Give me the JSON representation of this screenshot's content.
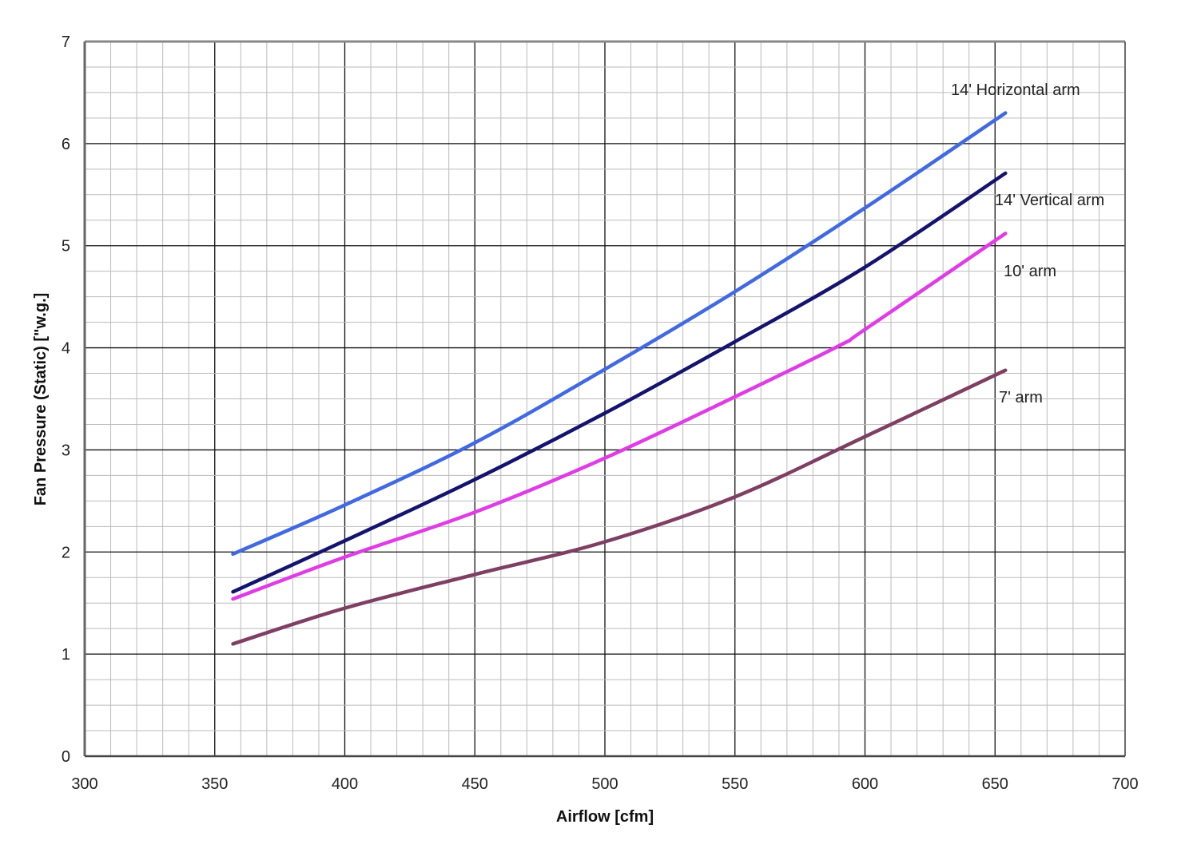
{
  "chart_data": {
    "type": "line",
    "title": "",
    "xlabel": "Airflow  [cfm]",
    "ylabel": "Fan Pressure (Static)  [\"w.g.]",
    "xlim": [
      300,
      700
    ],
    "ylim": [
      0,
      7
    ],
    "xticks": [
      300,
      350,
      400,
      450,
      500,
      550,
      600,
      650,
      700
    ],
    "yticks": [
      0,
      1,
      2,
      3,
      4,
      5,
      6,
      7
    ],
    "grid": true,
    "legend": "inline labels at right end of lines",
    "series": [
      {
        "name": "14' Horizontal arm",
        "color": "#4169e1",
        "x": [
          357,
          400,
          450,
          500,
          550,
          600,
          654
        ],
        "y": [
          1.98,
          2.46,
          3.07,
          3.79,
          4.55,
          5.37,
          6.3
        ]
      },
      {
        "name": "14' Vertical arm",
        "color": "#14146e",
        "x": [
          357,
          400,
          450,
          500,
          550,
          600,
          654
        ],
        "y": [
          1.61,
          2.11,
          2.71,
          3.36,
          4.06,
          4.79,
          5.71
        ]
      },
      {
        "name": "10' arm",
        "color": "#e03ce6",
        "x": [
          357,
          400,
          450,
          500,
          550,
          590,
          600,
          654
        ],
        "y": [
          1.54,
          1.95,
          2.39,
          2.92,
          3.52,
          4.02,
          4.18,
          5.12
        ]
      },
      {
        "name": "7' arm",
        "color": "#7e3f63",
        "x": [
          357,
          400,
          450,
          500,
          550,
          600,
          654
        ],
        "y": [
          1.1,
          1.45,
          1.78,
          2.1,
          2.54,
          3.13,
          3.78
        ]
      }
    ]
  }
}
